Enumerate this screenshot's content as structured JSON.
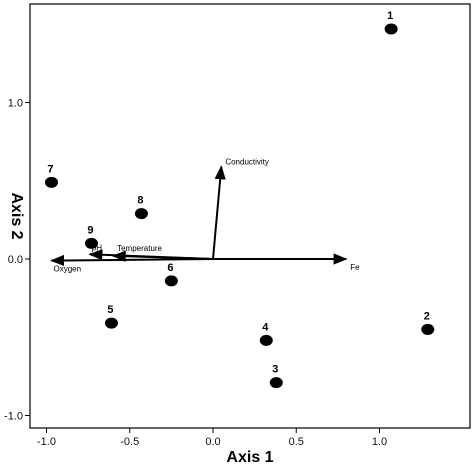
{
  "chart_data": {
    "type": "scatter",
    "title": "",
    "xlabel": "Axis 1",
    "ylabel": "Axis 2",
    "xlim": [
      -1.05,
      1.5
    ],
    "ylim": [
      -1.05,
      1.58
    ],
    "x_ticks": [
      -1.0,
      -0.5,
      0.0,
      0.5,
      1.0
    ],
    "x_tick_labels": [
      "-1.0",
      "-0.5",
      "0.0",
      "0.5",
      "1.0"
    ],
    "y_ticks": [
      -1.0,
      0.0,
      1.0
    ],
    "y_tick_labels": [
      "-1.0",
      "0.0",
      "1.0"
    ],
    "grid": false,
    "points": [
      {
        "label": "1",
        "x": 1.07,
        "y": 1.47
      },
      {
        "label": "2",
        "x": 1.29,
        "y": -0.45
      },
      {
        "label": "3",
        "x": 0.38,
        "y": -0.79
      },
      {
        "label": "4",
        "x": 0.32,
        "y": -0.52
      },
      {
        "label": "5",
        "x": -0.61,
        "y": -0.41
      },
      {
        "label": "6",
        "x": -0.25,
        "y": -0.14
      },
      {
        "label": "7",
        "x": -0.97,
        "y": 0.49
      },
      {
        "label": "8",
        "x": -0.43,
        "y": 0.29
      },
      {
        "label": "9",
        "x": -0.73,
        "y": 0.1
      }
    ],
    "vectors": [
      {
        "name": "Conductivity",
        "x": 0.05,
        "y": 0.59
      },
      {
        "name": "Fe",
        "x": 0.8,
        "y": 0.0
      },
      {
        "name": "Temperature",
        "x": -0.6,
        "y": 0.02
      },
      {
        "name": "pH",
        "x": -0.74,
        "y": 0.03
      },
      {
        "name": "Oxygen",
        "x": -0.97,
        "y": -0.01
      }
    ],
    "colors": {
      "points": "#000000",
      "axes": "#000000",
      "background": "#ffffff"
    }
  }
}
